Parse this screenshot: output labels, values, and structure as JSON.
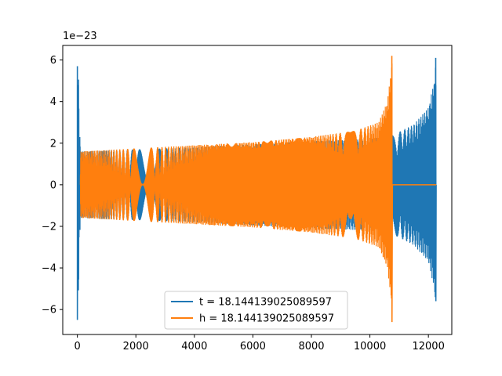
{
  "chart_data": {
    "type": "line",
    "title": "",
    "xlabel": "",
    "ylabel": "",
    "y_offset_text": "1e−23",
    "xlim": [
      -500,
      12800
    ],
    "ylim": [
      -7.2,
      6.7
    ],
    "xticks": [
      0,
      2000,
      4000,
      6000,
      8000,
      10000,
      12000
    ],
    "xtick_labels": [
      "0",
      "2000",
      "4000",
      "6000",
      "8000",
      "10000",
      "12000"
    ],
    "yticks": [
      -6,
      -4,
      -2,
      0,
      2,
      4,
      6
    ],
    "ytick_labels": [
      "−6",
      "−4",
      "−2",
      "0",
      "2",
      "4",
      "6"
    ],
    "grid": false,
    "legend_position": "lower center",
    "series": [
      {
        "name": "t = 18.144139025089597",
        "color": "#1f77b4",
        "description_points": {
          "x": [
            0,
            20,
            100,
            2000,
            4000,
            6000,
            8000,
            10000,
            10800,
            11500,
            12000,
            12200,
            12250,
            12280
          ],
          "envelope": [
            5.7,
            6.5,
            1.6,
            1.7,
            1.8,
            1.95,
            2.1,
            2.2,
            2.4,
            2.9,
            3.7,
            5.0,
            6.1,
            0
          ]
        }
      },
      {
        "name": "h = 18.144139025089597",
        "color": "#ff7f0e",
        "description_points": {
          "x": [
            100,
            2000,
            4000,
            6000,
            8000,
            9500,
            10300,
            10600,
            10720,
            10760,
            10780,
            12280
          ],
          "envelope": [
            1.6,
            1.75,
            1.9,
            2.05,
            2.3,
            2.6,
            3.0,
            4.0,
            5.5,
            6.2,
            0,
            0
          ]
        }
      }
    ]
  }
}
